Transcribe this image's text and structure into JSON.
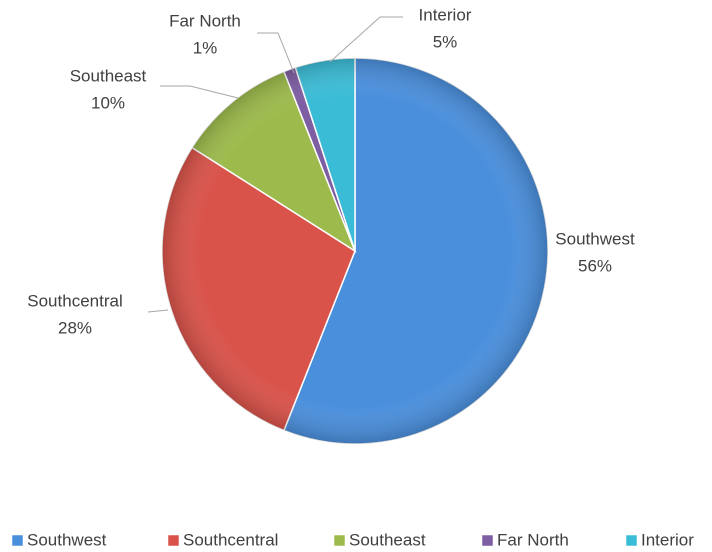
{
  "chart_data": {
    "type": "pie",
    "categories": [
      "Southwest",
      "Southcentral",
      "Southeast",
      "Far North",
      "Interior"
    ],
    "values": [
      56,
      28,
      10,
      1,
      5
    ],
    "value_labels": [
      "56%",
      "28%",
      "10%",
      "1%",
      "5%"
    ],
    "colors": [
      "#4a8fdc",
      "#d9534a",
      "#9dbb4c",
      "#7e5ea3",
      "#3bbcd6"
    ],
    "legend": "bottom"
  }
}
